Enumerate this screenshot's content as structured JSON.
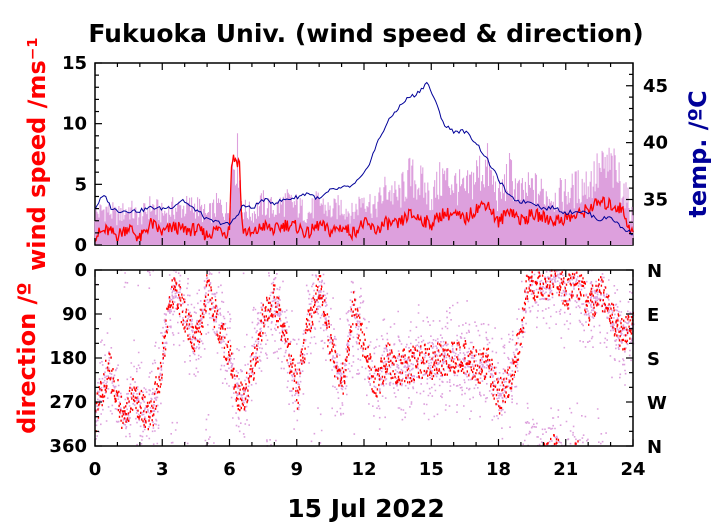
{
  "title": "Fukuoka Univ. (wind speed & direction)",
  "xlabel": "15 Jul 2022",
  "colors": {
    "wind_speed": "#ff0000",
    "wind_spread": "#dda0dd",
    "temperature": "#000099",
    "direction": "#ff0000",
    "direction_scatter": "#dda0dd",
    "axes": "#000000"
  },
  "chart_data": [
    {
      "type": "line",
      "panel": "top",
      "ylabel": "wind speed /ms⁻¹",
      "y2label": "temp. /ºC",
      "xlim": [
        0,
        24
      ],
      "ylim": [
        0,
        15
      ],
      "y2lim": [
        31,
        47
      ],
      "x_ticks": [
        "0",
        "3",
        "6",
        "9",
        "12",
        "15",
        "18",
        "21",
        "24"
      ],
      "y_ticks": [
        "0",
        "5",
        "10",
        "15"
      ],
      "y2_ticks": [
        "35",
        "40",
        "45"
      ],
      "series": [
        {
          "kind": "temperature",
          "x": [
            0,
            0.3,
            0.5,
            0.7,
            1,
            1.5,
            2,
            2.5,
            3,
            3.5,
            3.9,
            4.3,
            4.6,
            5,
            5.5,
            6,
            6.3,
            6.6,
            7,
            7.5,
            8,
            8.5,
            9,
            9.5,
            10,
            10.5,
            11,
            11.5,
            12,
            12.3,
            12.6,
            13,
            13.3,
            13.6,
            14,
            14.3,
            14.6,
            14.8,
            15,
            15.3,
            15.6,
            16,
            16.5,
            17,
            17.5,
            18,
            18.5,
            19,
            19.5,
            20,
            20.5,
            21,
            21.5,
            22,
            22.5,
            23,
            23.5,
            24
          ],
          "values": [
            34.2,
            35.2,
            35.2,
            34.3,
            34.0,
            34.0,
            34.0,
            34.3,
            34.2,
            34.4,
            35.0,
            34.3,
            34.0,
            33.2,
            33.0,
            32.8,
            33.5,
            34.5,
            34.2,
            35.0,
            34.7,
            35.0,
            35.2,
            35.6,
            35.0,
            35.8,
            36.0,
            36.2,
            37.2,
            38.5,
            40.0,
            41.6,
            42.5,
            43.2,
            44.0,
            44.2,
            44.8,
            45.3,
            44.5,
            43.0,
            41.5,
            41.0,
            41.0,
            40.0,
            38.5,
            36.8,
            35.2,
            34.8,
            34.8,
            34.2,
            34.3,
            33.8,
            34.0,
            33.8,
            33.2,
            33.5,
            32.5,
            32.0
          ]
        },
        {
          "kind": "wind_speed",
          "x": [
            0,
            0.5,
            1,
            1.5,
            2,
            2.5,
            3,
            3.5,
            4,
            4.5,
            5,
            5.5,
            5.9,
            6.0,
            6.1,
            6.3,
            6.45,
            6.55,
            7,
            7.5,
            8,
            8.5,
            9,
            9.5,
            10,
            10.5,
            11,
            11.5,
            12,
            12.5,
            13,
            13.5,
            14,
            14.5,
            15,
            15.5,
            16,
            16.5,
            17,
            17.5,
            18,
            18.5,
            19,
            19.5,
            20,
            20.5,
            21,
            21.5,
            22,
            22.5,
            23,
            23.5,
            24
          ],
          "values": [
            0.8,
            1.2,
            0.8,
            1.5,
            0.5,
            1.8,
            1.0,
            1.5,
            1.2,
            1.3,
            0.8,
            1.4,
            1.0,
            1.6,
            7.2,
            7.0,
            6.8,
            1.4,
            0.8,
            1.6,
            1.2,
            1.7,
            1.5,
            0.9,
            1.7,
            1.1,
            1.5,
            1.0,
            1.8,
            1.2,
            1.8,
            1.6,
            2.5,
            2.2,
            1.7,
            2.6,
            2.5,
            2.1,
            3.0,
            3.5,
            1.8,
            3.0,
            2.0,
            2.5,
            2.3,
            2.0,
            2.2,
            2.4,
            3.0,
            3.5,
            3.3,
            3.0,
            0.8
          ]
        },
        {
          "kind": "wind_speed_max",
          "x": [
            0,
            0.5,
            1,
            1.5,
            2,
            2.5,
            3,
            3.5,
            4,
            4.5,
            5,
            5.5,
            5.9,
            6.0,
            6.1,
            6.3,
            6.45,
            6.55,
            7,
            7.5,
            8,
            8.5,
            9,
            9.5,
            10,
            10.5,
            11,
            11.5,
            12,
            12.5,
            13,
            13.5,
            14,
            14.5,
            15,
            15.5,
            16,
            16.5,
            17,
            17.5,
            18,
            18.5,
            19,
            19.5,
            20,
            20.5,
            21,
            21.5,
            22,
            22.5,
            23,
            23.5,
            24
          ],
          "values": [
            3.0,
            3.5,
            2.8,
            3.5,
            2.6,
            3.8,
            3.0,
            3.5,
            3.6,
            3.8,
            2.8,
            3.9,
            3.2,
            4.0,
            8.0,
            8.4,
            7.8,
            3.6,
            3.0,
            4.0,
            3.4,
            4.2,
            3.8,
            3.0,
            4.2,
            3.2,
            3.8,
            3.0,
            4.8,
            3.5,
            5.5,
            4.5,
            6.5,
            6.0,
            4.5,
            6.5,
            6.0,
            5.0,
            6.8,
            7.5,
            4.5,
            6.8,
            4.8,
            5.5,
            5.0,
            4.6,
            5.0,
            5.5,
            6.0,
            7.0,
            7.5,
            6.0,
            2.6
          ]
        }
      ]
    },
    {
      "type": "scatter",
      "panel": "bottom",
      "ylabel": "direction /º",
      "xlim": [
        0,
        24
      ],
      "ylim": [
        0,
        360
      ],
      "y_inverted": true,
      "x_ticks": [
        "0",
        "3",
        "6",
        "9",
        "12",
        "15",
        "18",
        "21",
        "24"
      ],
      "y_ticks": [
        "0",
        "90",
        "180",
        "270",
        "360"
      ],
      "y2_ticks": [
        "N",
        "E",
        "S",
        "W",
        "N"
      ],
      "series": [
        {
          "kind": "direction",
          "x": [
            0,
            0.3,
            0.6,
            1.0,
            1.3,
            1.6,
            2.0,
            2.5,
            3.0,
            3.3,
            3.6,
            4.0,
            4.5,
            5.0,
            5.5,
            6.0,
            6.3,
            6.6,
            7.0,
            7.5,
            8.0,
            8.5,
            9.0,
            9.5,
            10.0,
            10.5,
            11.0,
            11.5,
            12.0,
            12.5,
            13.0,
            13.5,
            14.0,
            14.5,
            15.0,
            15.5,
            16.0,
            16.5,
            17.0,
            17.5,
            18.0,
            18.5,
            19.0,
            19.3,
            19.6,
            20.0,
            20.5,
            21.0,
            21.5,
            22.0,
            22.5,
            23.0,
            23.5,
            24.0
          ],
          "values": [
            300,
            240,
            200,
            260,
            320,
            250,
            280,
            300,
            180,
            60,
            40,
            100,
            150,
            30,
            120,
            180,
            250,
            260,
            200,
            100,
            60,
            150,
            250,
            100,
            40,
            160,
            230,
            80,
            160,
            240,
            180,
            200,
            195,
            185,
            190,
            180,
            180,
            175,
            200,
            190,
            260,
            220,
            120,
            20,
            40,
            30,
            10,
            50,
            20,
            80,
            40,
            100,
            130,
            120
          ]
        }
      ]
    }
  ]
}
